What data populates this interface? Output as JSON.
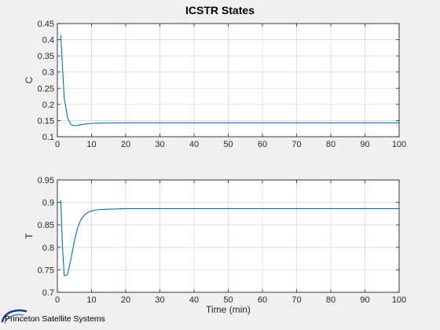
{
  "figure": {
    "title": "ICSTR States",
    "branding": "Princeton Satellite Systems",
    "colors": {
      "background": "#f0f0f0",
      "axes": "#ffffff",
      "line": "#0072bd",
      "grid": "#d9d9d9",
      "axis_line": "#262626"
    }
  },
  "chart_data": [
    {
      "type": "line",
      "title": "ICSTR States",
      "xlabel": "",
      "ylabel": "C",
      "xlim": [
        0,
        100
      ],
      "ylim": [
        0.1,
        0.45
      ],
      "x_ticks": [
        0,
        10,
        20,
        30,
        40,
        50,
        60,
        70,
        80,
        90,
        100
      ],
      "y_ticks": [
        0.1,
        0.15,
        0.2,
        0.25,
        0.3,
        0.35,
        0.4,
        0.45
      ],
      "x_tick_labels": [
        "0",
        "10",
        "20",
        "30",
        "40",
        "50",
        "60",
        "70",
        "80",
        "90",
        "100"
      ],
      "y_tick_labels": [
        "0.1",
        "0.15",
        "0.2",
        "0.25",
        "0.3",
        "0.35",
        "0.4",
        "0.45"
      ],
      "grid": true,
      "series": [
        {
          "color": "#0072bd",
          "x": [
            1,
            2,
            3,
            4,
            5,
            6,
            7,
            8,
            10,
            12,
            15,
            20,
            30,
            40,
            50,
            60,
            70,
            80,
            90,
            100
          ],
          "y": [
            0.415,
            0.22,
            0.158,
            0.137,
            0.134,
            0.135,
            0.137,
            0.139,
            0.141,
            0.142,
            0.1425,
            0.143,
            0.143,
            0.143,
            0.143,
            0.143,
            0.143,
            0.143,
            0.143,
            0.143
          ]
        }
      ]
    },
    {
      "type": "line",
      "xlabel": "Time (min)",
      "ylabel": "T",
      "xlim": [
        0,
        100
      ],
      "ylim": [
        0.7,
        0.95
      ],
      "x_ticks": [
        0,
        10,
        20,
        30,
        40,
        50,
        60,
        70,
        80,
        90,
        100
      ],
      "y_ticks": [
        0.7,
        0.75,
        0.8,
        0.85,
        0.9,
        0.95
      ],
      "x_tick_labels": [
        "0",
        "10",
        "20",
        "30",
        "40",
        "50",
        "60",
        "70",
        "80",
        "90",
        "100"
      ],
      "y_tick_labels": [
        "0.7",
        "0.75",
        "0.8",
        "0.85",
        "0.9",
        "0.95"
      ],
      "grid": true,
      "series": [
        {
          "color": "#0072bd",
          "x": [
            1,
            1.5,
            2,
            2.5,
            3,
            4,
            5,
            6,
            7,
            8,
            9,
            10,
            12,
            15,
            20,
            30,
            40,
            50,
            60,
            70,
            80,
            90,
            100
          ],
          "y": [
            0.905,
            0.8,
            0.738,
            0.737,
            0.74,
            0.775,
            0.815,
            0.845,
            0.863,
            0.873,
            0.878,
            0.881,
            0.884,
            0.885,
            0.886,
            0.886,
            0.886,
            0.886,
            0.886,
            0.886,
            0.886,
            0.886,
            0.886
          ]
        }
      ]
    }
  ]
}
